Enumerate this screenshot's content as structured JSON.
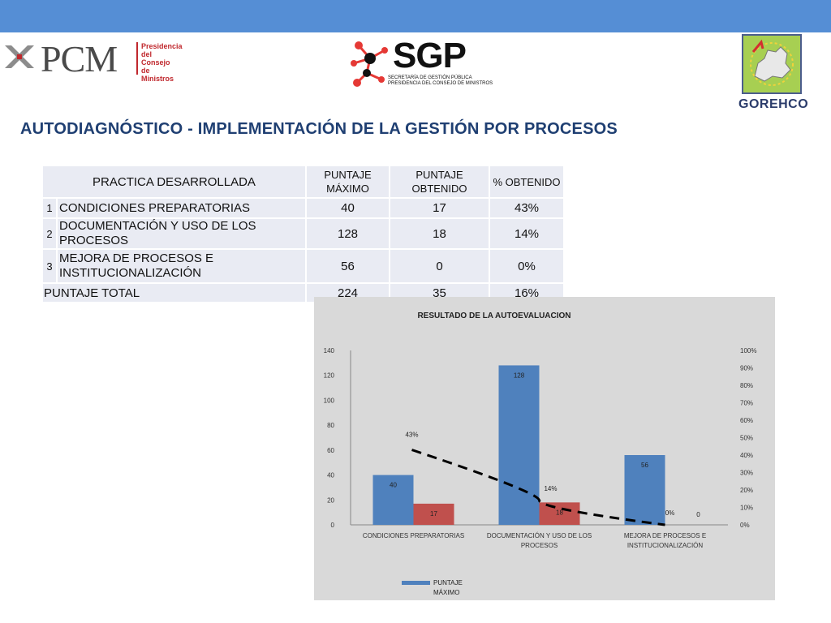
{
  "header": {
    "pcm_logo": "PCM",
    "pcm_sub": [
      "Presidencia",
      "del Consejo",
      "de Ministros"
    ],
    "sgp_logo": "SGP",
    "sgp_sub": [
      "SECRETARÍA DE GESTIÓN PÚBLICA",
      "PRESIDENCIA DEL CONSEJO DE MINISTROS"
    ],
    "gorehco_logo": "GOREHCO",
    "colors": {
      "bar": "#558ed5",
      "title": "#1f3f72"
    }
  },
  "title": "AUTODIAGNÓSTICO - IMPLEMENTACIÓN DE LA GESTIÓN POR PROCESOS",
  "table": {
    "headers": {
      "practice": "PRACTICA DESARROLLADA",
      "max": "PUNTAJE MÁXIMO",
      "obtained": "PUNTAJE OBTENIDO",
      "percent": "% OBTENIDO"
    },
    "rows": [
      {
        "num": "1",
        "name": "CONDICIONES PREPARATORIAS",
        "max": "40",
        "obtained": "17",
        "percent": "43%"
      },
      {
        "num": "2",
        "name": "DOCUMENTACIÓN Y USO DE LOS PROCESOS",
        "max": "128",
        "obtained": "18",
        "percent": "14%"
      },
      {
        "num": "3",
        "name": "MEJORA DE PROCESOS E INSTITUCIONALIZACIÓN",
        "max": "56",
        "obtained": "0",
        "percent": "0%"
      }
    ],
    "total": {
      "label": "PUNTAJE TOTAL",
      "max": "224",
      "obtained": "35",
      "percent": "16%"
    }
  },
  "chart_data": {
    "type": "bar",
    "title": "RESULTADO DE LA AUTOEVALUACION",
    "categories": [
      [
        "CONDICIONES PREPARATORIAS"
      ],
      [
        "DOCUMENTACIÓN Y USO DE LOS",
        "PROCESOS"
      ],
      [
        "MEJORA DE PROCESOS E",
        "INSTITUCIONALIZACIÓN"
      ]
    ],
    "series": [
      {
        "name": "PUNTAJE MÁXIMO",
        "values": [
          40,
          128,
          56
        ],
        "color": "#4f81bd",
        "labels": [
          "40",
          "128",
          "56"
        ]
      },
      {
        "values": [
          17,
          18,
          0
        ],
        "color": "#c0504d",
        "labels": [
          "17",
          "18",
          "0"
        ]
      }
    ],
    "line": {
      "values": [
        0.43,
        0.14,
        0.0
      ],
      "labels": [
        "43%",
        "14%",
        "0%"
      ],
      "style": "dashed",
      "color": "#000000",
      "axis": "right"
    },
    "ylim": [
      0,
      140
    ],
    "yticks": [
      "0",
      "20",
      "40",
      "60",
      "80",
      "100",
      "120",
      "140"
    ],
    "y2lim": [
      0,
      1
    ],
    "y2ticks": [
      "0%",
      "10%",
      "20%",
      "30%",
      "40%",
      "50%",
      "60%",
      "70%",
      "80%",
      "90%",
      "100%"
    ],
    "legend_entries": [
      {
        "label": [
          "PUNTAJE",
          "MÁXIMO"
        ],
        "color": "#4f81bd"
      }
    ],
    "legend_position": "bottom-left",
    "grid": false
  }
}
